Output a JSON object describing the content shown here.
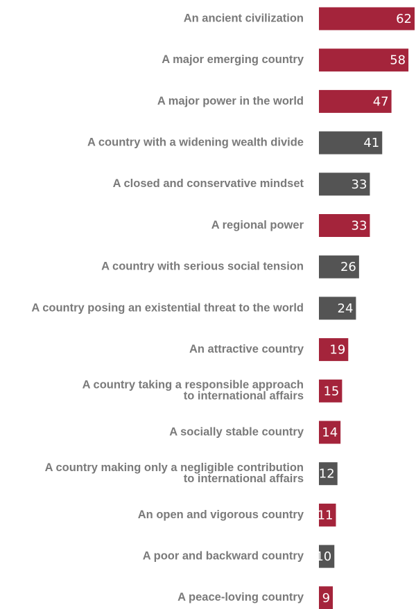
{
  "chart_data": {
    "type": "bar",
    "orientation": "horizontal",
    "title": "",
    "xlabel": "",
    "ylabel": "",
    "xlim": [
      0,
      62
    ],
    "grid": false,
    "legend": "none",
    "colors": {
      "red": "#a4243b",
      "gray": "#545454"
    },
    "categories": [
      "An ancient civilization",
      "A major emerging country",
      "A major power in the world",
      "A country with a widening wealth divide",
      "A closed and conservative mindset",
      "A regional power",
      "A country with serious social tension",
      "A country posing an existential threat to the world",
      "An attractive country",
      "A country taking a responsible approach to international affairs",
      "A socially stable country",
      "A country making only a negligible contribution to international affairs",
      "An open and vigorous country",
      "A poor and backward country",
      "A peace-loving country"
    ],
    "label_lines": [
      [
        "An ancient civilization"
      ],
      [
        "A major emerging country"
      ],
      [
        "A major power in the world"
      ],
      [
        "A country with a widening wealth divide"
      ],
      [
        "A closed and conservative mindset"
      ],
      [
        "A regional power"
      ],
      [
        "A country with serious social tension"
      ],
      [
        "A country posing an existential threat to the world"
      ],
      [
        "An attractive country"
      ],
      [
        "A country taking a responsible approach",
        "to international affairs"
      ],
      [
        "A socially stable country"
      ],
      [
        "A country making only a negligible contribution",
        "to international affairs"
      ],
      [
        "An open and vigorous country"
      ],
      [
        "A poor and backward country"
      ],
      [
        "A peace-loving country"
      ]
    ],
    "values": [
      62,
      58,
      47,
      41,
      33,
      33,
      26,
      24,
      19,
      15,
      14,
      12,
      11,
      10,
      9
    ],
    "bar_colors": [
      "red",
      "red",
      "red",
      "gray",
      "gray",
      "red",
      "gray",
      "gray",
      "red",
      "red",
      "red",
      "gray",
      "red",
      "gray",
      "red"
    ]
  }
}
